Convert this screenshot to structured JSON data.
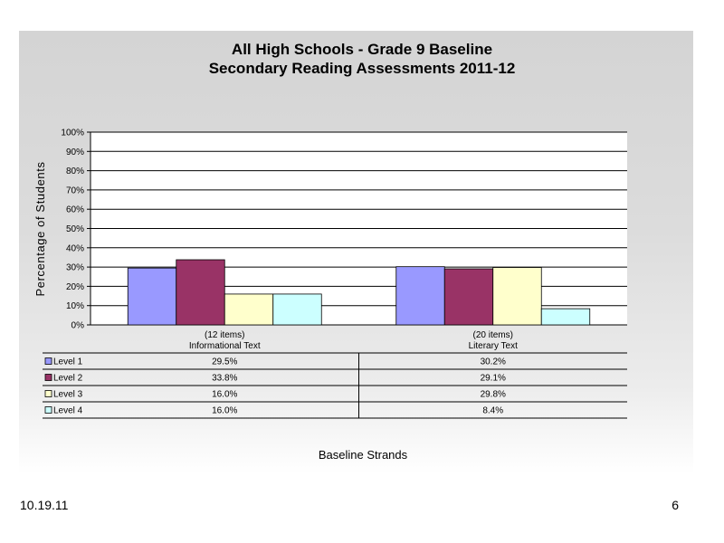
{
  "title_line1": "All High Schools - Grade 9 Baseline",
  "title_line2": "Secondary Reading Assessments 2011-12",
  "chart_data": {
    "type": "bar",
    "title": "All High Schools - Grade 9 Baseline Secondary Reading Assessments 2011-12",
    "ylabel": "Percentage of Students",
    "xlabel": "Baseline Strands",
    "ylim": [
      0,
      100
    ],
    "yticks": [
      "0%",
      "10%",
      "20%",
      "30%",
      "40%",
      "50%",
      "60%",
      "70%",
      "80%",
      "90%",
      "100%"
    ],
    "grid": true,
    "categories": [
      {
        "line1": "(12 items)",
        "line2": "Informational Text"
      },
      {
        "line1": "(20 items)",
        "line2": "Literary Text"
      }
    ],
    "series": [
      {
        "name": "Level 1",
        "color": "#9999ff",
        "values": [
          29.5,
          30.2
        ],
        "labels": [
          "29.5%",
          "30.2%"
        ]
      },
      {
        "name": "Level 2",
        "color": "#993366",
        "values": [
          33.8,
          29.1
        ],
        "labels": [
          "33.8%",
          "29.1%"
        ]
      },
      {
        "name": "Level 3",
        "color": "#ffffcc",
        "values": [
          16.0,
          29.8
        ],
        "labels": [
          "16.0%",
          "29.8%"
        ]
      },
      {
        "name": "Level 4",
        "color": "#ccffff",
        "values": [
          16.0,
          8.4
        ],
        "labels": [
          "16.0%",
          "8.4%"
        ]
      }
    ],
    "legend_placement": "data-table"
  },
  "footer": {
    "date": "10.19.11",
    "page": "6"
  }
}
